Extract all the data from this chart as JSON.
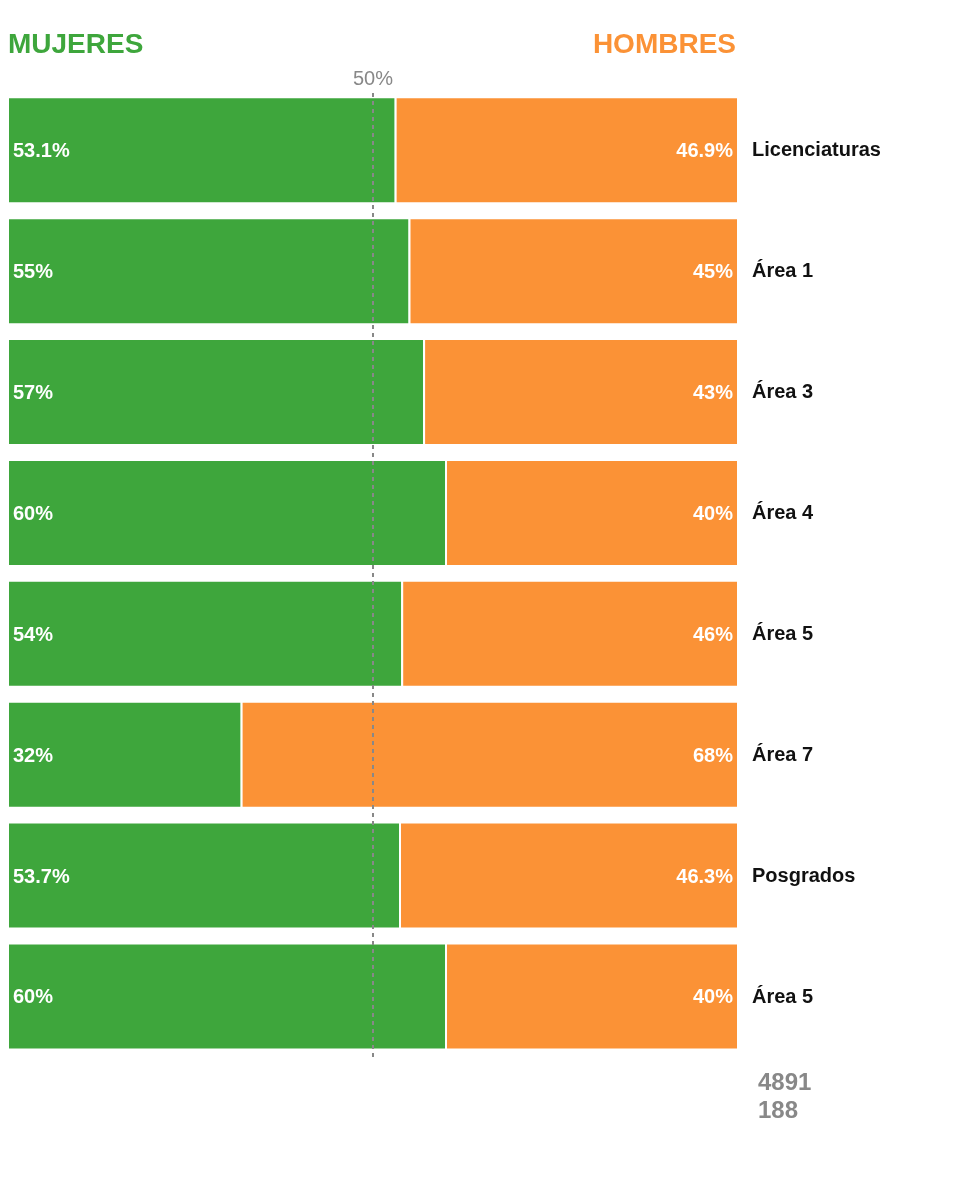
{
  "chart_data": {
    "type": "bar",
    "orientation": "horizontal",
    "stacked": true,
    "categories": [
      "Licenciaturas",
      "Área 1",
      "Área 3",
      "Área 4",
      "Área 5",
      "Área 7",
      "Posgrados",
      "Área 5"
    ],
    "series": [
      {
        "name": "MUJERES",
        "color": "#3ea63c",
        "values": [
          53.1,
          55,
          57,
          60,
          54,
          32,
          53.7,
          60
        ],
        "value_labels": [
          "53.1%",
          "55%",
          "57%",
          "60%",
          "54%",
          "32%",
          "53.7%",
          "60%"
        ]
      },
      {
        "name": "HOMBRES",
        "color": "#fb9236",
        "values": [
          46.9,
          45,
          43,
          40,
          46,
          68,
          46.3,
          40
        ],
        "value_labels": [
          "46.9%",
          "45%",
          "43%",
          "40%",
          "46%",
          "68%",
          "46.3%",
          "40%"
        ]
      }
    ],
    "xlim": [
      0,
      100
    ],
    "tick_labels": "y",
    "legend": "top",
    "grid": false,
    "ref_lines": [
      {
        "axis": "x",
        "value": 50,
        "label": "50%",
        "color": "#888888",
        "line_style": "dashed"
      }
    ],
    "annotations": [
      "4891",
      "188"
    ]
  }
}
